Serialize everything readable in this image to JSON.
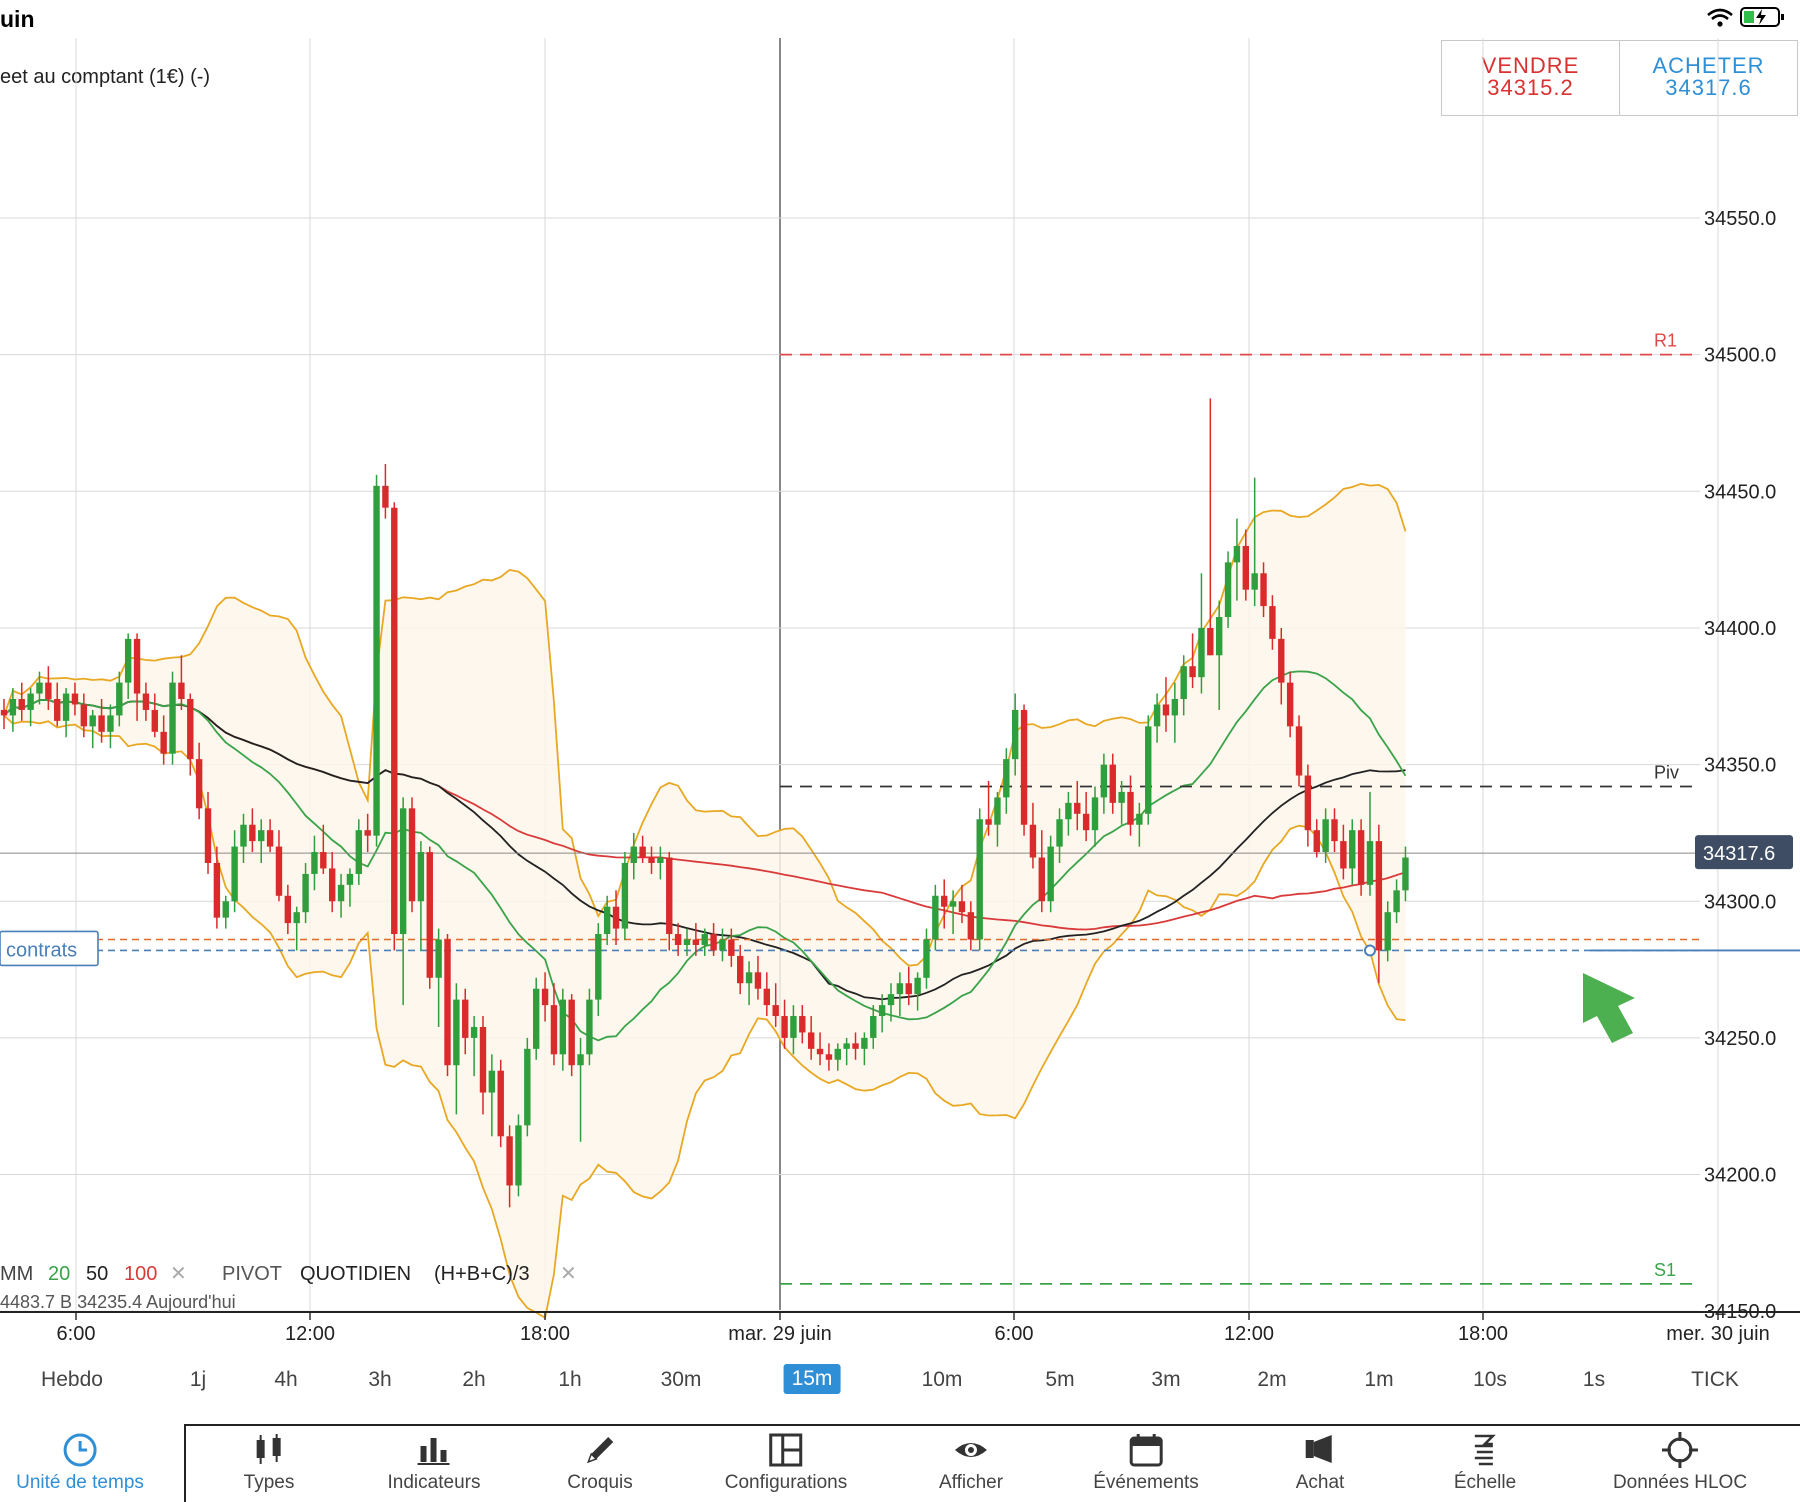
{
  "status_bar": {
    "time": "uin",
    "wifi_icon": "wifi-icon",
    "battery_icon": "battery-charging-icon"
  },
  "instrument_label": "eet au comptant (1€) (-)",
  "trade": {
    "sell_label": "VENDRE",
    "sell_price": "34315.2",
    "buy_label": "ACHETER",
    "buy_price": "34317.6"
  },
  "chart_data": {
    "type": "candlestick",
    "price_axis": {
      "ticks": [
        "34550.0",
        "34500.0",
        "34450.0",
        "34400.0",
        "34350.0",
        "34300.0",
        "34250.0",
        "34200.0",
        "34150.0"
      ],
      "ylim": [
        34150,
        34580
      ]
    },
    "time_axis": {
      "ticks": [
        "6:00",
        "12:00",
        "18:00",
        "mar. 29 juin",
        "6:00",
        "12:00",
        "18:00",
        "mer. 30 juin"
      ]
    },
    "current_price": "34317.6",
    "pivots": [
      {
        "label": "R1",
        "value": 34500,
        "color": "#e04848"
      },
      {
        "label": "Piv",
        "value": 34342,
        "color": "#333333"
      },
      {
        "label": "S1",
        "value": 34160,
        "color": "#3aa34a"
      }
    ],
    "position_label": "contrats",
    "position_price": 34282,
    "stop_price": 34286,
    "indicators": {
      "mm_label": "MM",
      "mm_periods": [
        "20",
        "50",
        "100"
      ],
      "mm_colors": [
        "#3aa34a",
        "#222222",
        "#d93a3a"
      ],
      "pivot_label": "PIVOT",
      "pivot_period": "QUOTIDIEN",
      "pivot_formula": "(H+B+C)/3",
      "info_line": "4483.7   B 34235.4   Aujourd'hui"
    },
    "candles": [
      [
        34370,
        34374,
        34363,
        34368
      ],
      [
        34368,
        34378,
        34362,
        34374
      ],
      [
        34374,
        34380,
        34366,
        34370
      ],
      [
        34370,
        34378,
        34364,
        34376
      ],
      [
        34376,
        34384,
        34372,
        34380
      ],
      [
        34380,
        34386,
        34370,
        34374
      ],
      [
        34374,
        34380,
        34364,
        34366
      ],
      [
        34366,
        34378,
        34360,
        34376
      ],
      [
        34376,
        34380,
        34368,
        34372
      ],
      [
        34372,
        34376,
        34360,
        34364
      ],
      [
        34364,
        34370,
        34356,
        34368
      ],
      [
        34368,
        34374,
        34358,
        34362
      ],
      [
        34362,
        34372,
        34356,
        34368
      ],
      [
        34368,
        34384,
        34364,
        34380
      ],
      [
        34380,
        34398,
        34374,
        34396
      ],
      [
        34396,
        34398,
        34366,
        34376
      ],
      [
        34376,
        34380,
        34366,
        34370
      ],
      [
        34370,
        34376,
        34360,
        34362
      ],
      [
        34362,
        34368,
        34350,
        34354
      ],
      [
        34354,
        34384,
        34350,
        34380
      ],
      [
        34380,
        34390,
        34370,
        34374
      ],
      [
        34374,
        34376,
        34346,
        34352
      ],
      [
        34352,
        34358,
        34330,
        34334
      ],
      [
        34334,
        34340,
        34310,
        34314
      ],
      [
        34314,
        34320,
        34290,
        34294
      ],
      [
        34294,
        34302,
        34290,
        34300
      ],
      [
        34300,
        34326,
        34296,
        34320
      ],
      [
        34320,
        34332,
        34314,
        34328
      ],
      [
        34328,
        34334,
        34318,
        34322
      ],
      [
        34322,
        34330,
        34314,
        34326
      ],
      [
        34326,
        34330,
        34318,
        34320
      ],
      [
        34320,
        34326,
        34300,
        34302
      ],
      [
        34302,
        34306,
        34288,
        34292
      ],
      [
        34292,
        34298,
        34282,
        34296
      ],
      [
        34296,
        34314,
        34292,
        34310
      ],
      [
        34310,
        34324,
        34304,
        34318
      ],
      [
        34318,
        34328,
        34310,
        34312
      ],
      [
        34312,
        34318,
        34296,
        34300
      ],
      [
        34300,
        34310,
        34294,
        34306
      ],
      [
        34306,
        34312,
        34298,
        34310
      ],
      [
        34310,
        34330,
        34306,
        34326
      ],
      [
        34326,
        34332,
        34318,
        34324
      ],
      [
        34324,
        34456,
        34320,
        34452
      ],
      [
        34452,
        34460,
        34440,
        34444
      ],
      [
        34444,
        34446,
        34282,
        34288
      ],
      [
        34288,
        34338,
        34262,
        34334
      ],
      [
        34334,
        34338,
        34296,
        34300
      ],
      [
        34300,
        34322,
        34282,
        34318
      ],
      [
        34318,
        34320,
        34268,
        34272
      ],
      [
        34272,
        34290,
        34254,
        34286
      ],
      [
        34286,
        34288,
        34236,
        34240
      ],
      [
        34240,
        34270,
        34222,
        34264
      ],
      [
        34264,
        34268,
        34244,
        34250
      ],
      [
        34250,
        34258,
        34236,
        34254
      ],
      [
        34254,
        34258,
        34222,
        34230
      ],
      [
        34230,
        34244,
        34214,
        34238
      ],
      [
        34238,
        34242,
        34210,
        34214
      ],
      [
        34214,
        34218,
        34188,
        34196
      ],
      [
        34196,
        34222,
        34192,
        34218
      ],
      [
        34218,
        34250,
        34214,
        34246
      ],
      [
        34246,
        34272,
        34242,
        34268
      ],
      [
        34268,
        34274,
        34256,
        34262
      ],
      [
        34262,
        34270,
        34240,
        34244
      ],
      [
        34244,
        34268,
        34238,
        34264
      ],
      [
        34264,
        34266,
        34236,
        34240
      ],
      [
        34240,
        34250,
        34212,
        34244
      ],
      [
        34244,
        34268,
        34240,
        34264
      ],
      [
        34264,
        34292,
        34258,
        34288
      ],
      [
        34288,
        34302,
        34284,
        34298
      ],
      [
        34298,
        34304,
        34284,
        34290
      ],
      [
        34290,
        34318,
        34286,
        34314
      ],
      [
        34314,
        34325,
        34308,
        34320
      ],
      [
        34320,
        34324,
        34314,
        34316
      ],
      [
        34316,
        34320,
        34310,
        34314
      ],
      [
        34314,
        34320,
        34308,
        34316
      ],
      [
        34316,
        34318,
        34282,
        34288
      ],
      [
        34288,
        34292,
        34280,
        34284
      ],
      [
        34284,
        34290,
        34280,
        34286
      ],
      [
        34286,
        34292,
        34280,
        34284
      ],
      [
        34284,
        34290,
        34280,
        34288
      ],
      [
        34288,
        34292,
        34280,
        34282
      ],
      [
        34282,
        34290,
        34278,
        34286
      ],
      [
        34286,
        34290,
        34276,
        34280
      ],
      [
        34280,
        34284,
        34266,
        34270
      ],
      [
        34270,
        34278,
        34262,
        34274
      ],
      [
        34274,
        34280,
        34264,
        34268
      ],
      [
        34268,
        34274,
        34258,
        34262
      ],
      [
        34262,
        34270,
        34254,
        34258
      ],
      [
        34258,
        34264,
        34246,
        34250
      ],
      [
        34250,
        34262,
        34244,
        34258
      ],
      [
        34258,
        34262,
        34248,
        34252
      ],
      [
        34252,
        34258,
        34242,
        34246
      ],
      [
        34246,
        34252,
        34240,
        34244
      ],
      [
        34244,
        34248,
        34238,
        34242
      ],
      [
        34242,
        34248,
        34238,
        34246
      ],
      [
        34246,
        34250,
        34240,
        34248
      ],
      [
        34248,
        34252,
        34242,
        34246
      ],
      [
        34246,
        34252,
        34240,
        34250
      ],
      [
        34250,
        34262,
        34246,
        34258
      ],
      [
        34258,
        34266,
        34252,
        34262
      ],
      [
        34262,
        34270,
        34256,
        34266
      ],
      [
        34266,
        34274,
        34258,
        34270
      ],
      [
        34270,
        34276,
        34262,
        34266
      ],
      [
        34266,
        34274,
        34260,
        34272
      ],
      [
        34272,
        34290,
        34268,
        34286
      ],
      [
        34286,
        34306,
        34282,
        34302
      ],
      [
        34302,
        34308,
        34290,
        34298
      ],
      [
        34298,
        34304,
        34288,
        34300
      ],
      [
        34300,
        34306,
        34292,
        34296
      ],
      [
        34296,
        34300,
        34282,
        34286
      ],
      [
        34286,
        34334,
        34282,
        34330
      ],
      [
        34330,
        34344,
        34324,
        34328
      ],
      [
        34328,
        34340,
        34320,
        34338
      ],
      [
        34338,
        34356,
        34332,
        34352
      ],
      [
        34352,
        34376,
        34346,
        34370
      ],
      [
        34370,
        34372,
        34324,
        34328
      ],
      [
        34328,
        34336,
        34312,
        34316
      ],
      [
        34316,
        34326,
        34296,
        34300
      ],
      [
        34300,
        34324,
        34296,
        34320
      ],
      [
        34320,
        34334,
        34314,
        34330
      ],
      [
        34330,
        34340,
        34324,
        34336
      ],
      [
        34336,
        34344,
        34326,
        34332
      ],
      [
        34332,
        34340,
        34322,
        34326
      ],
      [
        34326,
        34342,
        34320,
        34338
      ],
      [
        34338,
        34354,
        34332,
        34350
      ],
      [
        34350,
        34354,
        34332,
        34336
      ],
      [
        34336,
        34344,
        34328,
        34340
      ],
      [
        34340,
        34346,
        34324,
        34328
      ],
      [
        34328,
        34336,
        34320,
        34332
      ],
      [
        34332,
        34368,
        34328,
        34364
      ],
      [
        34364,
        34376,
        34358,
        34372
      ],
      [
        34372,
        34382,
        34362,
        34368
      ],
      [
        34368,
        34380,
        34358,
        34374
      ],
      [
        34374,
        34390,
        34368,
        34386
      ],
      [
        34386,
        34398,
        34378,
        34382
      ],
      [
        34382,
        34420,
        34376,
        34400
      ],
      [
        34400,
        34484,
        34390,
        34390
      ],
      [
        34390,
        34410,
        34370,
        34404
      ],
      [
        34404,
        34428,
        34400,
        34424
      ],
      [
        34424,
        34440,
        34410,
        34430
      ],
      [
        34430,
        34436,
        34410,
        34414
      ],
      [
        34414,
        34455,
        34408,
        34420
      ],
      [
        34420,
        34424,
        34404,
        34408
      ],
      [
        34408,
        34412,
        34392,
        34396
      ],
      [
        34396,
        34400,
        34372,
        34380
      ],
      [
        34380,
        34384,
        34360,
        34364
      ],
      [
        34364,
        34368,
        34342,
        34346
      ],
      [
        34346,
        34350,
        34320,
        34326
      ],
      [
        34326,
        34330,
        34316,
        34318
      ],
      [
        34318,
        34334,
        34314,
        34330
      ],
      [
        34330,
        34334,
        34318,
        34322
      ],
      [
        34322,
        34328,
        34308,
        34312
      ],
      [
        34312,
        34330,
        34306,
        34326
      ],
      [
        34326,
        34330,
        34302,
        34306
      ],
      [
        34306,
        34340,
        34302,
        34322
      ],
      [
        34322,
        34328,
        34270,
        34282
      ],
      [
        34282,
        34300,
        34278,
        34296
      ],
      [
        34296,
        34308,
        34292,
        34304
      ],
      [
        34304,
        34320,
        34300,
        34316
      ]
    ]
  },
  "timeframes": [
    "Hebdo",
    "1j",
    "4h",
    "3h",
    "2h",
    "1h",
    "30m",
    "15m",
    "10m",
    "5m",
    "3m",
    "2m",
    "1m",
    "10s",
    "1s",
    "TICK"
  ],
  "active_timeframe": "15m",
  "toolbar": [
    {
      "label": "Unité de temps",
      "icon": "clock-icon"
    },
    {
      "label": "Types",
      "icon": "candles-icon"
    },
    {
      "label": "Indicateurs",
      "icon": "bar-chart-icon"
    },
    {
      "label": "Croquis",
      "icon": "pencil-icon"
    },
    {
      "label": "Configurations",
      "icon": "layout-icon"
    },
    {
      "label": "Afficher",
      "icon": "eye-icon"
    },
    {
      "label": "Événements",
      "icon": "calendar-icon"
    },
    {
      "label": "Achat",
      "icon": "megaphone-icon"
    },
    {
      "label": "Échelle",
      "icon": "scale-icon"
    },
    {
      "label": "Données HLOC",
      "icon": "crosshair-icon"
    }
  ]
}
